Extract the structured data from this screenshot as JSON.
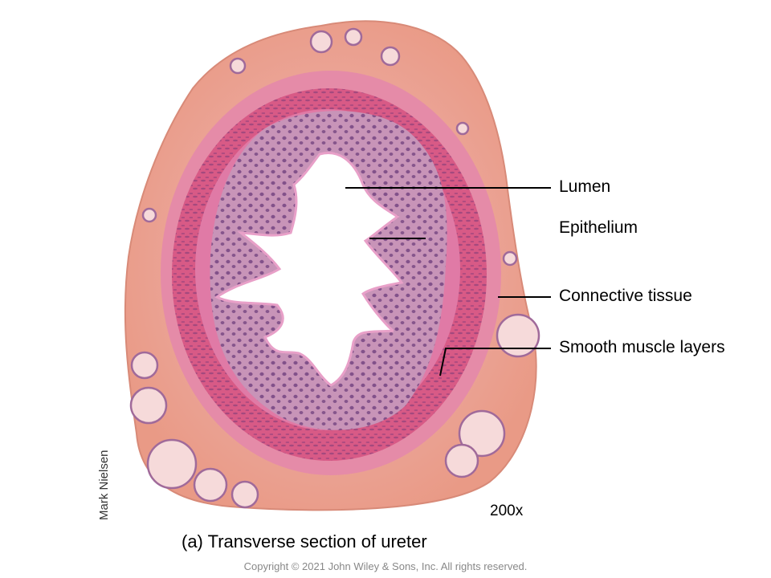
{
  "image": {
    "subject": "ureter-cross-section-micrograph",
    "colors": {
      "connective_tissue": "#eda596",
      "muscle_layer": "#d85a86",
      "epithelium": "#c894b8",
      "nuclei": "#6a3a7a",
      "lumen": "#ffffff"
    }
  },
  "labels": {
    "lumen": "Lumen",
    "epithelium": "Epithelium",
    "connective_tissue": "Connective tissue",
    "smooth_muscle": "Smooth muscle layers"
  },
  "credit": "Mark Nielsen",
  "magnification": "200x",
  "caption": "(a) Transverse section of ureter",
  "copyright": "Copyright © 2021 John Wiley & Sons, Inc. All rights reserved."
}
